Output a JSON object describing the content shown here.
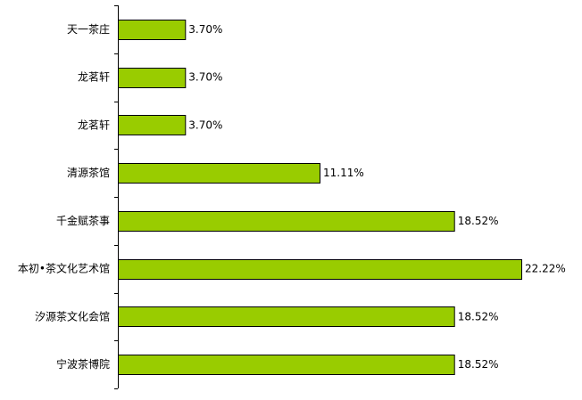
{
  "chart_data": {
    "type": "bar",
    "orientation": "horizontal",
    "categories": [
      "天一茶庄",
      "龙茗轩",
      "龙茗轩",
      "清源茶馆",
      "千金赋茶事",
      "本初•茶文化艺术馆",
      "汐源茶文化会馆",
      "宁波茶博院"
    ],
    "values": [
      3.7,
      3.7,
      3.7,
      11.11,
      18.52,
      22.22,
      18.52,
      18.52
    ],
    "data_labels": [
      "3.70%",
      "3.70%",
      "3.70%",
      "11.11%",
      "18.52%",
      "22.22%",
      "18.52%",
      "18.52%"
    ],
    "unit": "%",
    "title": "",
    "xlabel": "",
    "ylabel": "",
    "xlim": [
      0,
      22.22
    ],
    "grid": false,
    "legend": "none",
    "bar_color": "#99cc00",
    "bar_outline_color": "#000000"
  }
}
